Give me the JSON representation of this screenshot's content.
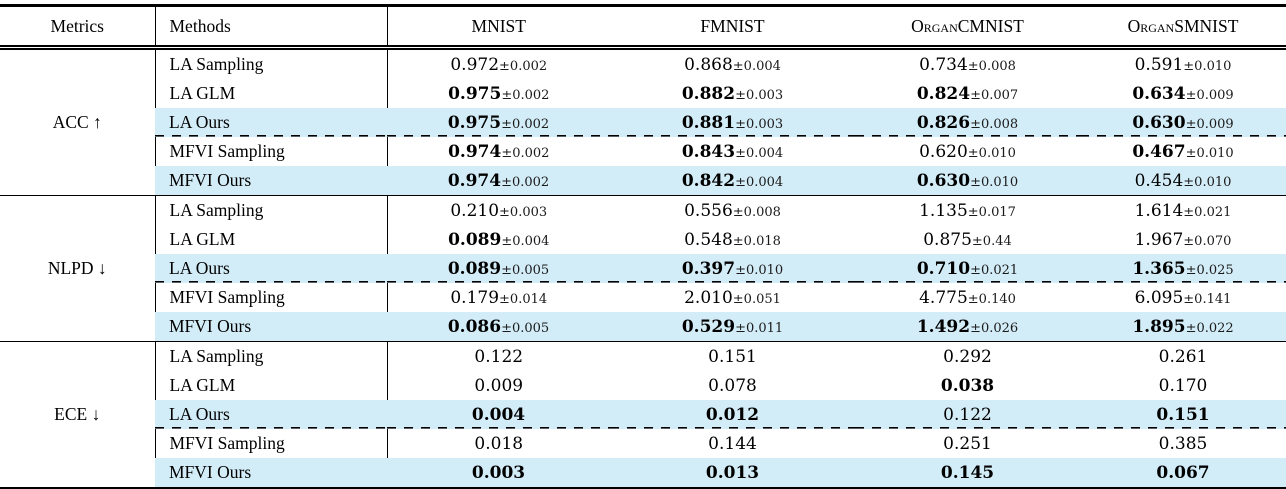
{
  "colors": {
    "highlight_row_bg": "#d3edf8",
    "rule_color": "#000000",
    "text_color": "#000000"
  },
  "table": {
    "plus_minus": "±",
    "columns": [
      "Metrics",
      "Methods",
      "MNIST",
      "FMNIST",
      "OrganCMNIST",
      "OrganSMNIST"
    ],
    "sections": [
      {
        "metric": "ACC ↑",
        "rows": [
          {
            "method": "LA Sampling",
            "highlight": false,
            "dashed_below": false,
            "cells": [
              {
                "value": "0.972",
                "error": "0.002",
                "bold": false
              },
              {
                "value": "0.868",
                "error": "0.004",
                "bold": false
              },
              {
                "value": "0.734",
                "error": "0.008",
                "bold": false
              },
              {
                "value": "0.591",
                "error": "0.010",
                "bold": false
              }
            ]
          },
          {
            "method": "LA GLM",
            "highlight": false,
            "dashed_below": false,
            "cells": [
              {
                "value": "0.975",
                "error": "0.002",
                "bold": true
              },
              {
                "value": "0.882",
                "error": "0.003",
                "bold": true
              },
              {
                "value": "0.824",
                "error": "0.007",
                "bold": true
              },
              {
                "value": "0.634",
                "error": "0.009",
                "bold": true
              }
            ]
          },
          {
            "method": "LA Ours",
            "highlight": true,
            "dashed_below": true,
            "cells": [
              {
                "value": "0.975",
                "error": "0.002",
                "bold": true
              },
              {
                "value": "0.881",
                "error": "0.003",
                "bold": true
              },
              {
                "value": "0.826",
                "error": "0.008",
                "bold": true
              },
              {
                "value": "0.630",
                "error": "0.009",
                "bold": true
              }
            ]
          },
          {
            "method": "MFVI Sampling",
            "highlight": false,
            "dashed_below": false,
            "cells": [
              {
                "value": "0.974",
                "error": "0.002",
                "bold": true
              },
              {
                "value": "0.843",
                "error": "0.004",
                "bold": true
              },
              {
                "value": "0.620",
                "error": "0.010",
                "bold": false
              },
              {
                "value": "0.467",
                "error": "0.010",
                "bold": true
              }
            ]
          },
          {
            "method": "MFVI Ours",
            "highlight": true,
            "dashed_below": false,
            "cells": [
              {
                "value": "0.974",
                "error": "0.002",
                "bold": true
              },
              {
                "value": "0.842",
                "error": "0.004",
                "bold": true
              },
              {
                "value": "0.630",
                "error": "0.010",
                "bold": true
              },
              {
                "value": "0.454",
                "error": "0.010",
                "bold": false
              }
            ]
          }
        ]
      },
      {
        "metric": "NLPD ↓",
        "rows": [
          {
            "method": "LA Sampling",
            "highlight": false,
            "dashed_below": false,
            "cells": [
              {
                "value": "0.210",
                "error": "0.003",
                "bold": false
              },
              {
                "value": "0.556",
                "error": "0.008",
                "bold": false
              },
              {
                "value": "1.135",
                "error": "0.017",
                "bold": false
              },
              {
                "value": "1.614",
                "error": "0.021",
                "bold": false
              }
            ]
          },
          {
            "method": "LA GLM",
            "highlight": false,
            "dashed_below": false,
            "cells": [
              {
                "value": "0.089",
                "error": "0.004",
                "bold": true
              },
              {
                "value": "0.548",
                "error": "0.018",
                "bold": false
              },
              {
                "value": "0.875",
                "error": "0.44",
                "bold": false
              },
              {
                "value": "1.967",
                "error": "0.070",
                "bold": false
              }
            ]
          },
          {
            "method": "LA Ours",
            "highlight": true,
            "dashed_below": true,
            "cells": [
              {
                "value": "0.089",
                "error": "0.005",
                "bold": true
              },
              {
                "value": "0.397",
                "error": "0.010",
                "bold": true
              },
              {
                "value": "0.710",
                "error": "0.021",
                "bold": true
              },
              {
                "value": "1.365",
                "error": "0.025",
                "bold": true
              }
            ]
          },
          {
            "method": "MFVI Sampling",
            "highlight": false,
            "dashed_below": false,
            "cells": [
              {
                "value": "0.179",
                "error": "0.014",
                "bold": false
              },
              {
                "value": "2.010",
                "error": "0.051",
                "bold": false
              },
              {
                "value": "4.775",
                "error": "0.140",
                "bold": false
              },
              {
                "value": "6.095",
                "error": "0.141",
                "bold": false
              }
            ]
          },
          {
            "method": "MFVI Ours",
            "highlight": true,
            "dashed_below": false,
            "cells": [
              {
                "value": "0.086",
                "error": "0.005",
                "bold": true
              },
              {
                "value": "0.529",
                "error": "0.011",
                "bold": true
              },
              {
                "value": "1.492",
                "error": "0.026",
                "bold": true
              },
              {
                "value": "1.895",
                "error": "0.022",
                "bold": true
              }
            ]
          }
        ]
      },
      {
        "metric": "ECE ↓",
        "rows": [
          {
            "method": "LA Sampling",
            "highlight": false,
            "dashed_below": false,
            "cells": [
              {
                "value": "0.122",
                "error": null,
                "bold": false
              },
              {
                "value": "0.151",
                "error": null,
                "bold": false
              },
              {
                "value": "0.292",
                "error": null,
                "bold": false
              },
              {
                "value": "0.261",
                "error": null,
                "bold": false
              }
            ]
          },
          {
            "method": "LA GLM",
            "highlight": false,
            "dashed_below": false,
            "cells": [
              {
                "value": "0.009",
                "error": null,
                "bold": false
              },
              {
                "value": "0.078",
                "error": null,
                "bold": false
              },
              {
                "value": "0.038",
                "error": null,
                "bold": true
              },
              {
                "value": "0.170",
                "error": null,
                "bold": false
              }
            ]
          },
          {
            "method": "LA Ours",
            "highlight": true,
            "dashed_below": true,
            "cells": [
              {
                "value": "0.004",
                "error": null,
                "bold": true
              },
              {
                "value": "0.012",
                "error": null,
                "bold": true
              },
              {
                "value": "0.122",
                "error": null,
                "bold": false
              },
              {
                "value": "0.151",
                "error": null,
                "bold": true
              }
            ]
          },
          {
            "method": "MFVI Sampling",
            "highlight": false,
            "dashed_below": false,
            "cells": [
              {
                "value": "0.018",
                "error": null,
                "bold": false
              },
              {
                "value": "0.144",
                "error": null,
                "bold": false
              },
              {
                "value": "0.251",
                "error": null,
                "bold": false
              },
              {
                "value": "0.385",
                "error": null,
                "bold": false
              }
            ]
          },
          {
            "method": "MFVI Ours",
            "highlight": true,
            "dashed_below": false,
            "cells": [
              {
                "value": "0.003",
                "error": null,
                "bold": true
              },
              {
                "value": "0.013",
                "error": null,
                "bold": true
              },
              {
                "value": "0.145",
                "error": null,
                "bold": true
              },
              {
                "value": "0.067",
                "error": null,
                "bold": true
              }
            ]
          }
        ]
      }
    ]
  }
}
